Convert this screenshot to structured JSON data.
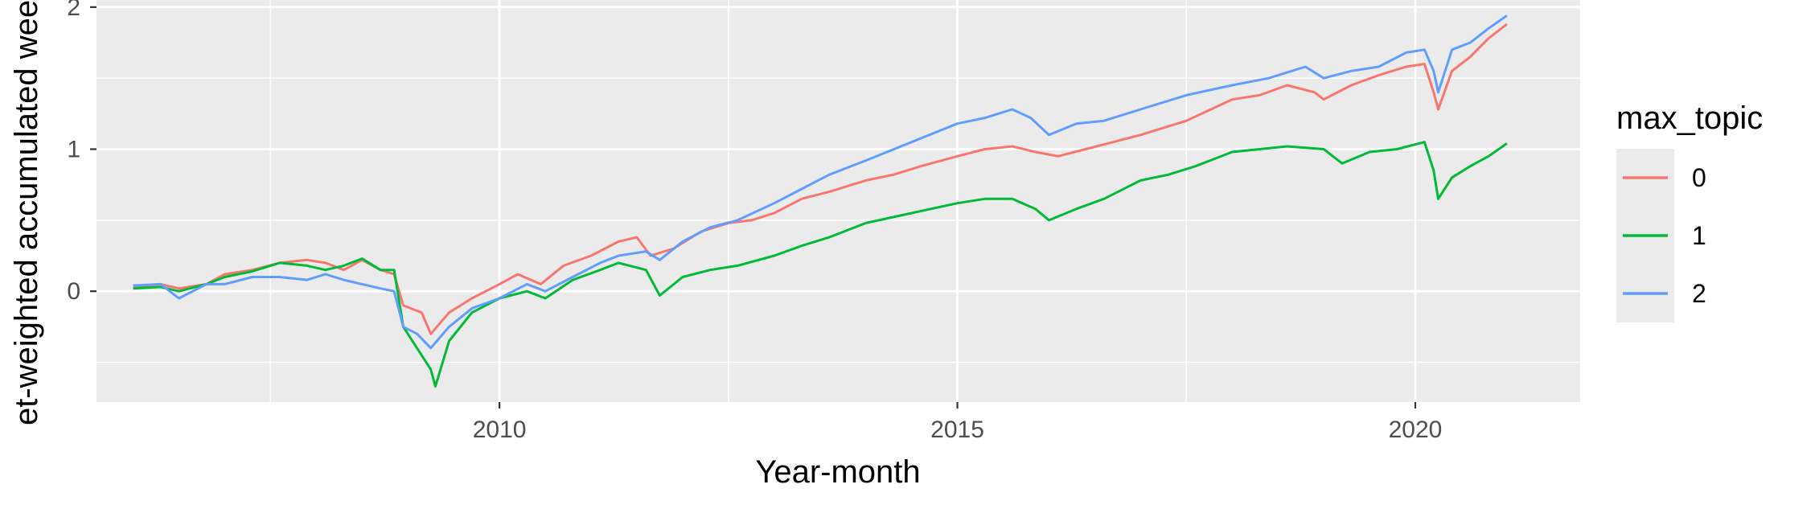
{
  "chart_data": {
    "type": "line",
    "xlabel": "Year-month",
    "ylabel": "et-weighted accumulated weekl",
    "xlim": [
      2005.6,
      2021.8
    ],
    "ylim": [
      -0.78,
      2.05
    ],
    "x_ticks": [
      {
        "value": 2010,
        "label": "2010"
      },
      {
        "value": 2015,
        "label": "2015"
      },
      {
        "value": 2020,
        "label": "2020"
      }
    ],
    "x_minor_ticks": [
      2007.5,
      2012.5,
      2017.5
    ],
    "y_ticks": [
      {
        "value": 0,
        "label": "0"
      },
      {
        "value": 1,
        "label": "1"
      },
      {
        "value": 2,
        "label": "2"
      }
    ],
    "y_minor_ticks": [
      -0.5,
      0.5,
      1.5
    ],
    "grid": true,
    "legend": {
      "title": "max_topic",
      "position": "right"
    },
    "series": [
      {
        "name": "0",
        "color": "#F8766D",
        "points": [
          [
            2006.0,
            0.03
          ],
          [
            2006.3,
            0.05
          ],
          [
            2006.5,
            0.02
          ],
          [
            2006.8,
            0.05
          ],
          [
            2007.0,
            0.12
          ],
          [
            2007.3,
            0.15
          ],
          [
            2007.6,
            0.2
          ],
          [
            2007.9,
            0.22
          ],
          [
            2008.1,
            0.2
          ],
          [
            2008.3,
            0.15
          ],
          [
            2008.5,
            0.22
          ],
          [
            2008.7,
            0.15
          ],
          [
            2008.85,
            0.12
          ],
          [
            2008.95,
            -0.1
          ],
          [
            2009.15,
            -0.15
          ],
          [
            2009.25,
            -0.3
          ],
          [
            2009.45,
            -0.15
          ],
          [
            2009.7,
            -0.05
          ],
          [
            2010.0,
            0.05
          ],
          [
            2010.2,
            0.12
          ],
          [
            2010.45,
            0.05
          ],
          [
            2010.7,
            0.18
          ],
          [
            2011.0,
            0.25
          ],
          [
            2011.3,
            0.35
          ],
          [
            2011.5,
            0.38
          ],
          [
            2011.65,
            0.25
          ],
          [
            2011.9,
            0.3
          ],
          [
            2012.2,
            0.42
          ],
          [
            2012.5,
            0.48
          ],
          [
            2012.75,
            0.5
          ],
          [
            2013.0,
            0.55
          ],
          [
            2013.3,
            0.65
          ],
          [
            2013.6,
            0.7
          ],
          [
            2014.0,
            0.78
          ],
          [
            2014.3,
            0.82
          ],
          [
            2014.6,
            0.88
          ],
          [
            2015.0,
            0.95
          ],
          [
            2015.3,
            1.0
          ],
          [
            2015.6,
            1.02
          ],
          [
            2015.85,
            0.98
          ],
          [
            2016.1,
            0.95
          ],
          [
            2016.4,
            1.0
          ],
          [
            2016.7,
            1.05
          ],
          [
            2017.0,
            1.1
          ],
          [
            2017.5,
            1.2
          ],
          [
            2018.0,
            1.35
          ],
          [
            2018.3,
            1.38
          ],
          [
            2018.6,
            1.45
          ],
          [
            2018.9,
            1.4
          ],
          [
            2019.0,
            1.35
          ],
          [
            2019.3,
            1.45
          ],
          [
            2019.6,
            1.52
          ],
          [
            2019.9,
            1.58
          ],
          [
            2020.1,
            1.6
          ],
          [
            2020.2,
            1.4
          ],
          [
            2020.25,
            1.28
          ],
          [
            2020.4,
            1.55
          ],
          [
            2020.6,
            1.65
          ],
          [
            2020.8,
            1.78
          ],
          [
            2021.0,
            1.88
          ]
        ]
      },
      {
        "name": "1",
        "color": "#00BA38",
        "points": [
          [
            2006.0,
            0.02
          ],
          [
            2006.3,
            0.03
          ],
          [
            2006.5,
            0.0
          ],
          [
            2006.8,
            0.05
          ],
          [
            2007.0,
            0.1
          ],
          [
            2007.3,
            0.14
          ],
          [
            2007.6,
            0.2
          ],
          [
            2007.9,
            0.18
          ],
          [
            2008.1,
            0.15
          ],
          [
            2008.3,
            0.18
          ],
          [
            2008.5,
            0.23
          ],
          [
            2008.7,
            0.15
          ],
          [
            2008.85,
            0.15
          ],
          [
            2008.95,
            -0.25
          ],
          [
            2009.1,
            -0.4
          ],
          [
            2009.25,
            -0.55
          ],
          [
            2009.3,
            -0.67
          ],
          [
            2009.45,
            -0.35
          ],
          [
            2009.7,
            -0.15
          ],
          [
            2010.0,
            -0.05
          ],
          [
            2010.3,
            0.0
          ],
          [
            2010.5,
            -0.05
          ],
          [
            2010.8,
            0.08
          ],
          [
            2011.1,
            0.15
          ],
          [
            2011.3,
            0.2
          ],
          [
            2011.6,
            0.15
          ],
          [
            2011.75,
            -0.03
          ],
          [
            2012.0,
            0.1
          ],
          [
            2012.3,
            0.15
          ],
          [
            2012.6,
            0.18
          ],
          [
            2013.0,
            0.25
          ],
          [
            2013.3,
            0.32
          ],
          [
            2013.6,
            0.38
          ],
          [
            2014.0,
            0.48
          ],
          [
            2014.5,
            0.55
          ],
          [
            2015.0,
            0.62
          ],
          [
            2015.3,
            0.65
          ],
          [
            2015.6,
            0.65
          ],
          [
            2015.85,
            0.58
          ],
          [
            2016.0,
            0.5
          ],
          [
            2016.3,
            0.58
          ],
          [
            2016.6,
            0.65
          ],
          [
            2017.0,
            0.78
          ],
          [
            2017.3,
            0.82
          ],
          [
            2017.6,
            0.88
          ],
          [
            2018.0,
            0.98
          ],
          [
            2018.3,
            1.0
          ],
          [
            2018.6,
            1.02
          ],
          [
            2019.0,
            1.0
          ],
          [
            2019.2,
            0.9
          ],
          [
            2019.5,
            0.98
          ],
          [
            2019.8,
            1.0
          ],
          [
            2020.1,
            1.05
          ],
          [
            2020.2,
            0.85
          ],
          [
            2020.25,
            0.65
          ],
          [
            2020.4,
            0.8
          ],
          [
            2020.6,
            0.88
          ],
          [
            2020.8,
            0.95
          ],
          [
            2021.0,
            1.04
          ]
        ]
      },
      {
        "name": "2",
        "color": "#619CFF",
        "points": [
          [
            2006.0,
            0.04
          ],
          [
            2006.3,
            0.05
          ],
          [
            2006.5,
            -0.05
          ],
          [
            2006.8,
            0.05
          ],
          [
            2007.0,
            0.05
          ],
          [
            2007.3,
            0.1
          ],
          [
            2007.6,
            0.1
          ],
          [
            2007.9,
            0.08
          ],
          [
            2008.1,
            0.12
          ],
          [
            2008.3,
            0.08
          ],
          [
            2008.5,
            0.05
          ],
          [
            2008.7,
            0.02
          ],
          [
            2008.85,
            0.0
          ],
          [
            2008.95,
            -0.25
          ],
          [
            2009.1,
            -0.3
          ],
          [
            2009.25,
            -0.4
          ],
          [
            2009.45,
            -0.25
          ],
          [
            2009.7,
            -0.12
          ],
          [
            2010.0,
            -0.05
          ],
          [
            2010.3,
            0.05
          ],
          [
            2010.5,
            0.0
          ],
          [
            2010.8,
            0.1
          ],
          [
            2011.1,
            0.2
          ],
          [
            2011.3,
            0.25
          ],
          [
            2011.6,
            0.28
          ],
          [
            2011.75,
            0.22
          ],
          [
            2012.0,
            0.35
          ],
          [
            2012.3,
            0.45
          ],
          [
            2012.6,
            0.5
          ],
          [
            2013.0,
            0.62
          ],
          [
            2013.3,
            0.72
          ],
          [
            2013.6,
            0.82
          ],
          [
            2014.0,
            0.92
          ],
          [
            2014.5,
            1.05
          ],
          [
            2015.0,
            1.18
          ],
          [
            2015.3,
            1.22
          ],
          [
            2015.6,
            1.28
          ],
          [
            2015.8,
            1.22
          ],
          [
            2016.0,
            1.1
          ],
          [
            2016.3,
            1.18
          ],
          [
            2016.6,
            1.2
          ],
          [
            2017.0,
            1.28
          ],
          [
            2017.5,
            1.38
          ],
          [
            2018.0,
            1.45
          ],
          [
            2018.4,
            1.5
          ],
          [
            2018.8,
            1.58
          ],
          [
            2019.0,
            1.5
          ],
          [
            2019.3,
            1.55
          ],
          [
            2019.6,
            1.58
          ],
          [
            2019.9,
            1.68
          ],
          [
            2020.1,
            1.7
          ],
          [
            2020.2,
            1.55
          ],
          [
            2020.25,
            1.4
          ],
          [
            2020.4,
            1.7
          ],
          [
            2020.6,
            1.75
          ],
          [
            2020.8,
            1.85
          ],
          [
            2021.0,
            1.94
          ]
        ]
      }
    ]
  }
}
